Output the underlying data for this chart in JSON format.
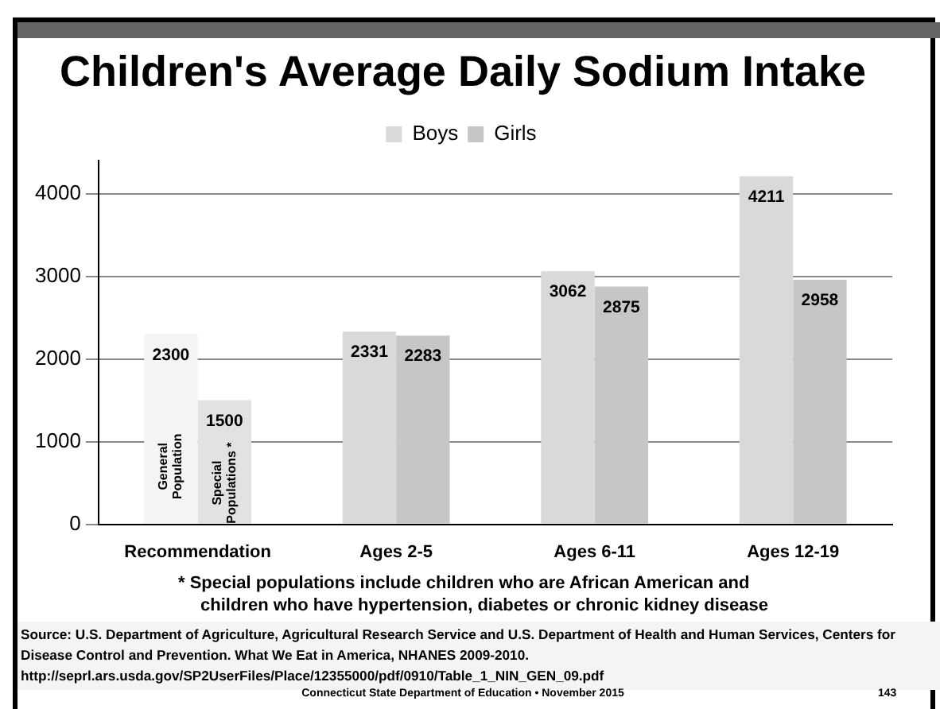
{
  "chart_data": {
    "type": "bar",
    "title": "Children's Average Daily Sodium Intake",
    "categories": [
      "Recommendation",
      "Ages 2-5",
      "Ages 6-11",
      "Ages 12-19"
    ],
    "series": [
      {
        "name": "Boys",
        "color": "#d9d9d9",
        "colors": [
          "#f4f4f4",
          "#d9d9d9",
          "#d9d9d9",
          "#d9d9d9"
        ],
        "values": [
          2300,
          2331,
          3062,
          4211
        ]
      },
      {
        "name": "Girls",
        "color": "#c6c6c6",
        "colors": [
          "#e2e2e2",
          "#c6c6c6",
          "#c6c6c6",
          "#c6c6c6"
        ],
        "values": [
          1500,
          2283,
          2875,
          2958
        ]
      }
    ],
    "ylim": [
      0,
      4400
    ],
    "yticks": [
      0,
      1000,
      2000,
      3000,
      4000
    ],
    "grid": "y",
    "legend": "top",
    "data_labels": true,
    "annotations": [
      {
        "text": "General Population",
        "x": "Recommendation",
        "y": 700
      },
      {
        "text": "Special Populations *",
        "x": "Recommendation",
        "y": 500
      },
      "* Special populations include children who are African American and children who have hypertension, diabetes or chronic kidney disease",
      "Source: U.S. Department of Agriculture, Agricultural Research Service and U.S. Department of Health and Human Services, Centers for Disease Control and Prevention. What We Eat in America, NHANES 2009-2010. http://seprl.ars.usda.gov/SP2UserFiles/Place/12355000/pdf/0910/Table_1_NIN_GEN_09.pdf",
      "Connecticut State Department of Education • November 2015",
      "143"
    ]
  }
}
